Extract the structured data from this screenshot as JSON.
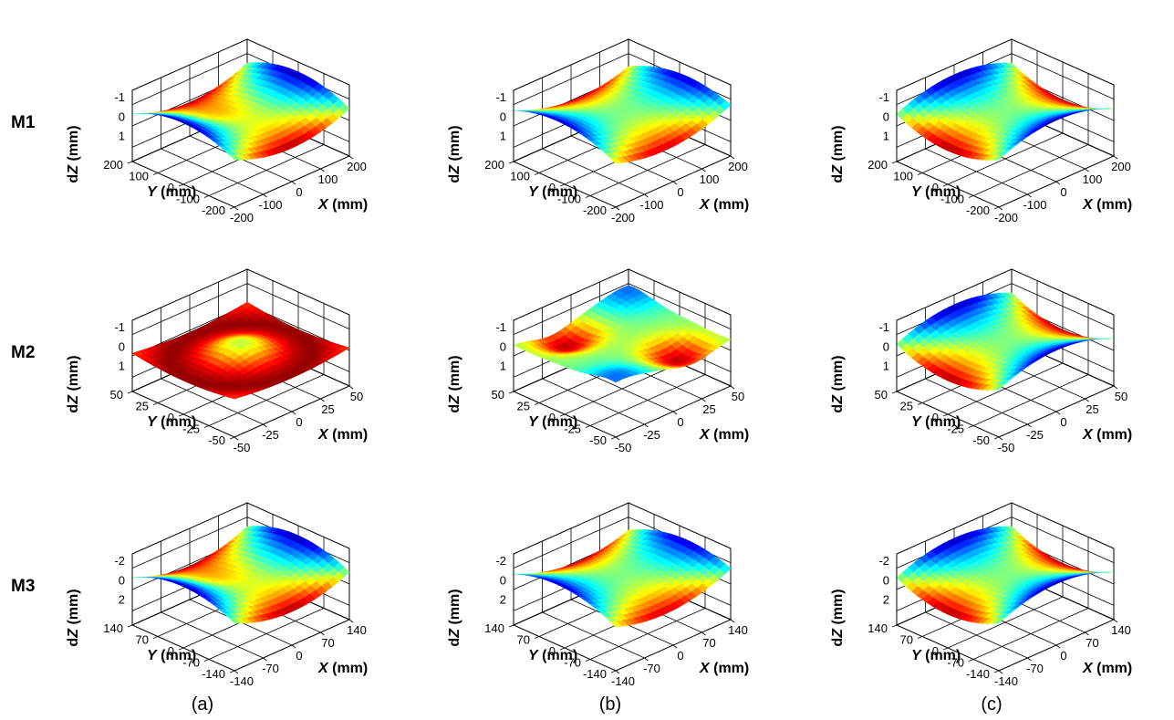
{
  "figure": {
    "row_labels": [
      "M1",
      "M2",
      "M3"
    ],
    "column_labels": [
      "(a)",
      "(b)",
      "(c)"
    ],
    "axis_labels": {
      "x_var": "X",
      "y_var": "Y",
      "z_var": "dZ",
      "unit": " (mm)"
    }
  },
  "colors": {
    "colormap": "jet",
    "stops": [
      "#00008f",
      "#0000ff",
      "#00ffff",
      "#ffff00",
      "#ff0000",
      "#800000"
    ]
  },
  "chart_data": [
    {
      "type": "surface",
      "row": "M1",
      "column": "(a)",
      "pattern": "saddle-bowl",
      "x_ticks": [
        "-200",
        "-100",
        "0",
        "100",
        "200"
      ],
      "y_ticks": [
        "-200",
        "-100",
        "0",
        "100",
        "200"
      ],
      "z_ticks": [
        "-1",
        "0",
        "1"
      ],
      "xlim": [
        -200,
        200
      ],
      "ylim": [
        -200,
        200
      ],
      "zlim": [
        -1,
        1
      ],
      "z_reversed": true,
      "xlabel": "X (mm)",
      "ylabel": "Y (mm)",
      "zlabel": "dZ (mm)"
    },
    {
      "type": "surface",
      "row": "M1",
      "column": "(b)",
      "pattern": "diagonal-saddle",
      "x_ticks": [
        "-200",
        "-100",
        "0",
        "100",
        "200"
      ],
      "y_ticks": [
        "-200",
        "-100",
        "0",
        "100",
        "200"
      ],
      "z_ticks": [
        "-1",
        "0",
        "1"
      ],
      "xlim": [
        -200,
        200
      ],
      "ylim": [
        -200,
        200
      ],
      "zlim": [
        -1,
        1
      ],
      "z_reversed": true,
      "xlabel": "X (mm)",
      "ylabel": "Y (mm)",
      "zlabel": "dZ (mm)"
    },
    {
      "type": "surface",
      "row": "M1",
      "column": "(c)",
      "pattern": "saddle",
      "x_ticks": [
        "-200",
        "-100",
        "0",
        "100",
        "200"
      ],
      "y_ticks": [
        "-200",
        "-100",
        "0",
        "100",
        "200"
      ],
      "z_ticks": [
        "-1",
        "0",
        "1"
      ],
      "xlim": [
        -200,
        200
      ],
      "ylim": [
        -200,
        200
      ],
      "zlim": [
        -1,
        1
      ],
      "z_reversed": true,
      "xlabel": "X (mm)",
      "ylabel": "Y (mm)",
      "zlabel": "dZ (mm)"
    },
    {
      "type": "surface",
      "row": "M2",
      "column": "(a)",
      "pattern": "ring",
      "x_ticks": [
        "-50",
        "-25",
        "0",
        "25",
        "50"
      ],
      "y_ticks": [
        "-50",
        "-25",
        "0",
        "25",
        "50"
      ],
      "z_ticks": [
        "-1",
        "0",
        "1"
      ],
      "xlim": [
        -50,
        50
      ],
      "ylim": [
        -50,
        50
      ],
      "zlim": [
        -1,
        1
      ],
      "z_reversed": true,
      "xlabel": "X (mm)",
      "ylabel": "Y (mm)",
      "zlabel": "dZ (mm)"
    },
    {
      "type": "surface",
      "row": "M2",
      "column": "(b)",
      "pattern": "two-lobes",
      "x_ticks": [
        "-50",
        "-25",
        "0",
        "25",
        "50"
      ],
      "y_ticks": [
        "-50",
        "-25",
        "0",
        "25",
        "50"
      ],
      "z_ticks": [
        "-1",
        "0",
        "1"
      ],
      "xlim": [
        -50,
        50
      ],
      "ylim": [
        -50,
        50
      ],
      "zlim": [
        -1,
        1
      ],
      "z_reversed": true,
      "xlabel": "X (mm)",
      "ylabel": "Y (mm)",
      "zlabel": "dZ (mm)"
    },
    {
      "type": "surface",
      "row": "M2",
      "column": "(c)",
      "pattern": "saddle",
      "x_ticks": [
        "-50",
        "-25",
        "0",
        "25",
        "50"
      ],
      "y_ticks": [
        "-50",
        "-25",
        "0",
        "25",
        "50"
      ],
      "z_ticks": [
        "-1",
        "0",
        "1"
      ],
      "xlim": [
        -50,
        50
      ],
      "ylim": [
        -50,
        50
      ],
      "zlim": [
        -1,
        1
      ],
      "z_reversed": true,
      "xlabel": "X (mm)",
      "ylabel": "Y (mm)",
      "zlabel": "dZ (mm)"
    },
    {
      "type": "surface",
      "row": "M3",
      "column": "(a)",
      "pattern": "saddle-bowl",
      "x_ticks": [
        "-140",
        "-70",
        "0",
        "70",
        "140"
      ],
      "y_ticks": [
        "-140",
        "-70",
        "0",
        "70",
        "140"
      ],
      "z_ticks": [
        "-2",
        "0",
        "2"
      ],
      "xlim": [
        -140,
        140
      ],
      "ylim": [
        -140,
        140
      ],
      "zlim": [
        -2,
        2
      ],
      "z_reversed": true,
      "xlabel": "X (mm)",
      "ylabel": "Y (mm)",
      "zlabel": "dZ (mm)"
    },
    {
      "type": "surface",
      "row": "M3",
      "column": "(b)",
      "pattern": "diagonal-saddle",
      "x_ticks": [
        "-140",
        "-70",
        "0",
        "70",
        "140"
      ],
      "y_ticks": [
        "-140",
        "-70",
        "0",
        "70",
        "140"
      ],
      "z_ticks": [
        "-2",
        "0",
        "2"
      ],
      "xlim": [
        -140,
        140
      ],
      "ylim": [
        -140,
        140
      ],
      "zlim": [
        -2,
        2
      ],
      "z_reversed": true,
      "xlabel": "X (mm)",
      "ylabel": "Y (mm)",
      "zlabel": "dZ (mm)"
    },
    {
      "type": "surface",
      "row": "M3",
      "column": "(c)",
      "pattern": "saddle",
      "x_ticks": [
        "-140",
        "-70",
        "0",
        "70",
        "140"
      ],
      "y_ticks": [
        "-140",
        "-70",
        "0",
        "70",
        "140"
      ],
      "z_ticks": [
        "-2",
        "0",
        "2"
      ],
      "xlim": [
        -140,
        140
      ],
      "ylim": [
        -140,
        140
      ],
      "zlim": [
        -2,
        2
      ],
      "z_reversed": true,
      "xlabel": "X (mm)",
      "ylabel": "Y (mm)",
      "zlabel": "dZ (mm)"
    }
  ]
}
